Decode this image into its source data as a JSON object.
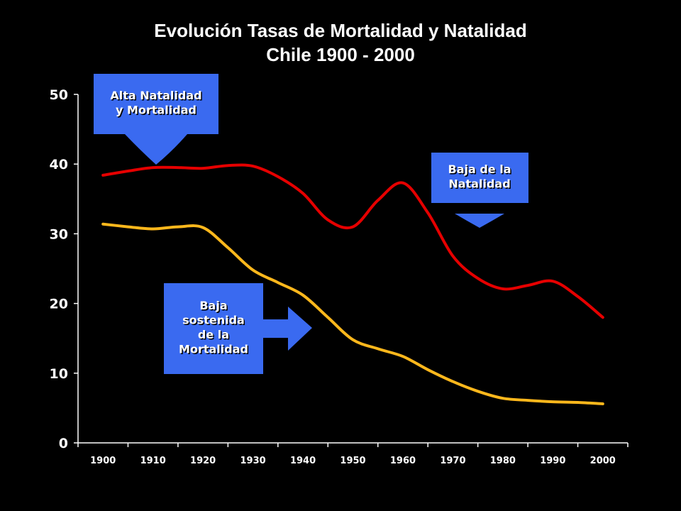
{
  "chart_data": {
    "type": "line",
    "title_line1": "Evolución Tasas de Mortalidad y Natalidad",
    "title_line2": "Chile 1900 - 2000",
    "x": [
      1900,
      1910,
      1920,
      1930,
      1940,
      1950,
      1960,
      1970,
      1980,
      1990,
      2000
    ],
    "x_ticks": [
      "1900",
      "1910",
      "1920",
      "1930",
      "1940",
      "1950",
      "1960",
      "1970",
      "1980",
      "1990",
      "2000"
    ],
    "y_ticks": [
      "0",
      "10",
      "20",
      "30",
      "40",
      "50"
    ],
    "ylim": [
      0,
      50
    ],
    "xlim": [
      1895,
      2005
    ],
    "series": [
      {
        "color": "#e60000",
        "points": [
          [
            1900,
            38.4
          ],
          [
            1905,
            39.0
          ],
          [
            1910,
            39.5
          ],
          [
            1915,
            39.5
          ],
          [
            1920,
            39.4
          ],
          [
            1925,
            39.8
          ],
          [
            1930,
            39.7
          ],
          [
            1935,
            38.2
          ],
          [
            1940,
            35.8
          ],
          [
            1945,
            32.0
          ],
          [
            1950,
            31.0
          ],
          [
            1955,
            34.8
          ],
          [
            1960,
            37.3
          ],
          [
            1965,
            33.0
          ],
          [
            1970,
            26.8
          ],
          [
            1975,
            23.6
          ],
          [
            1980,
            22.1
          ],
          [
            1985,
            22.6
          ],
          [
            1990,
            23.2
          ],
          [
            1995,
            21.0
          ],
          [
            2000,
            18.0
          ]
        ]
      },
      {
        "color": "#ffb81c",
        "points": [
          [
            1900,
            31.4
          ],
          [
            1905,
            31.0
          ],
          [
            1910,
            30.7
          ],
          [
            1915,
            31.0
          ],
          [
            1920,
            30.9
          ],
          [
            1925,
            28.0
          ],
          [
            1930,
            24.8
          ],
          [
            1935,
            23.0
          ],
          [
            1940,
            21.2
          ],
          [
            1945,
            18.0
          ],
          [
            1950,
            14.8
          ],
          [
            1955,
            13.5
          ],
          [
            1960,
            12.4
          ],
          [
            1965,
            10.5
          ],
          [
            1970,
            8.8
          ],
          [
            1975,
            7.4
          ],
          [
            1980,
            6.4
          ],
          [
            1985,
            6.1
          ],
          [
            1990,
            5.9
          ],
          [
            1995,
            5.8
          ],
          [
            2000,
            5.6
          ]
        ]
      }
    ],
    "annotations": [
      {
        "lines": [
          "Alta Natalidad",
          "y  Mortalidad"
        ],
        "arrow": "down",
        "color": "#3a6af0"
      },
      {
        "lines": [
          "Baja de la",
          "Natalidad"
        ],
        "arrow": "down",
        "color": "#3a6af0"
      },
      {
        "lines": [
          "Baja",
          "sostenida",
          "de la",
          "Mortalidad"
        ],
        "arrow": "right",
        "color": "#3a6af0"
      }
    ]
  }
}
